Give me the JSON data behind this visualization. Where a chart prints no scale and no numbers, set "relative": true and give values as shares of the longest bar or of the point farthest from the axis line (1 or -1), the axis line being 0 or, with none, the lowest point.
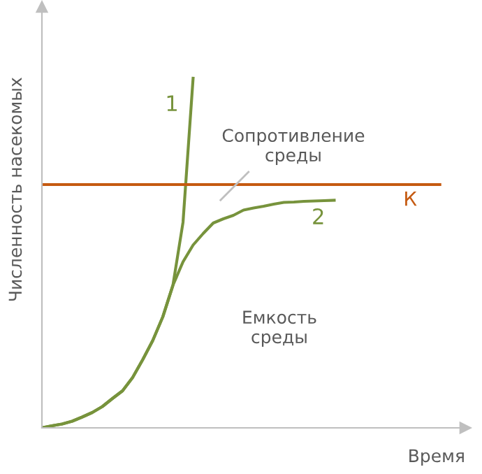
{
  "chart_data": {
    "type": "line",
    "relative": true,
    "xlabel": "Время",
    "ylabel": "Численность насекомых",
    "legend": false,
    "marker": "none",
    "line_style": "solid",
    "categories": [
      null,
      null,
      null,
      null,
      null,
      null,
      null,
      null,
      null,
      null,
      null,
      null,
      null,
      null,
      null,
      null,
      null,
      null,
      null,
      null,
      null,
      null,
      null,
      null,
      null,
      null,
      null,
      null,
      null,
      null,
      null,
      null,
      null,
      null,
      null,
      null,
      null,
      null,
      null,
      null,
      null,
      null,
      null
    ],
    "series": [
      {
        "name": "1",
        "color": "#77933c",
        "values": [
          0,
          0.006,
          0.011,
          0.019,
          0.031,
          0.044,
          0.061,
          0.084,
          0.106,
          0.144,
          0.195,
          0.25,
          0.318,
          0.408,
          0.588,
          1.0,
          null,
          null,
          null,
          null,
          null,
          null,
          null,
          null,
          null,
          null,
          null,
          null,
          null,
          null,
          null,
          null,
          null,
          null,
          null,
          null,
          null,
          null,
          null,
          null,
          null,
          null,
          null
        ]
      },
      {
        "name": "2",
        "color": "#77933c",
        "values": [
          0,
          0.006,
          0.011,
          0.019,
          0.031,
          0.044,
          0.061,
          0.084,
          0.106,
          0.144,
          0.195,
          0.25,
          0.318,
          0.408,
          0.475,
          0.523,
          0.556,
          0.586,
          0.598,
          0.608,
          0.623,
          0.629,
          0.634,
          0.64,
          0.645,
          0.646,
          0.648,
          0.649,
          0.65,
          0.651,
          null,
          null,
          null,
          null,
          null,
          null,
          null,
          null,
          null,
          null,
          null,
          null,
          null
        ]
      }
    ],
    "ref_lines": [
      {
        "axis": "y",
        "value": 0.696,
        "label": "К",
        "color": "#c55a11"
      }
    ],
    "annotations": [
      "Сопротивление среды",
      "Емкость среды"
    ]
  }
}
